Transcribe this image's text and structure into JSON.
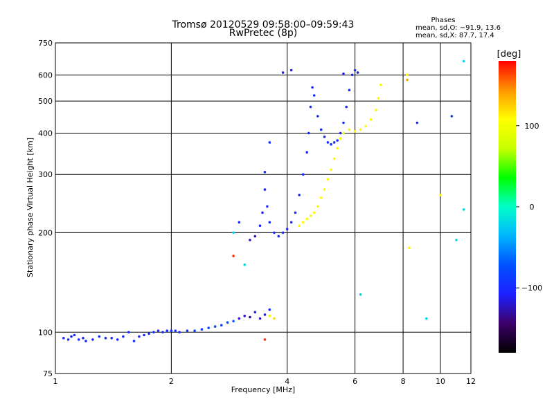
{
  "title_line1": "Tromsø 20120529 09:58:00–09:59:43",
  "title_line2": "RwPretec (8p)",
  "phases_header": "Phases",
  "phases_o": "mean, sd,O: −91.9, 13.6",
  "phases_x": "mean, sd,X:  87.7, 17.4",
  "colorbar_label": "[deg]",
  "colors": {
    "background": "#ffffff",
    "grid": "#000000",
    "text": "#000000"
  },
  "chart_data": {
    "type": "scatter",
    "xlabel": "Frequency [MHz]",
    "ylabel": "Stationary phase Virtual Height [km]",
    "x_scale": "log",
    "y_scale": "log",
    "xlim": [
      1,
      12
    ],
    "ylim": [
      75,
      750
    ],
    "x_ticks": [
      1,
      2,
      4,
      6,
      8,
      10,
      12
    ],
    "y_ticks": [
      75,
      100,
      200,
      300,
      400,
      500,
      600,
      750
    ],
    "grid": true,
    "colorbar": {
      "label": "[deg]",
      "range": [
        -180,
        180
      ],
      "ticks": [
        100,
        0,
        -100
      ],
      "colors": [
        "#000000",
        "#3c0068",
        "#1e20ff",
        "#0050ff",
        "#00b4ff",
        "#00ffc8",
        "#00ff00",
        "#c8ff00",
        "#ffff00",
        "#ff9600",
        "#ff0000"
      ]
    },
    "series": [
      {
        "points": [
          [
            1.05,
            96,
            -100
          ],
          [
            1.08,
            95,
            -100
          ],
          [
            1.1,
            97,
            -110
          ],
          [
            1.12,
            98,
            -100
          ],
          [
            1.15,
            95,
            -100
          ],
          [
            1.18,
            96,
            -105
          ],
          [
            1.2,
            94,
            -100
          ],
          [
            1.25,
            95,
            -100
          ],
          [
            1.3,
            97,
            -100
          ],
          [
            1.35,
            96,
            -100
          ],
          [
            1.4,
            96,
            -100
          ],
          [
            1.45,
            95,
            -100
          ],
          [
            1.5,
            97,
            -100
          ],
          [
            1.55,
            100,
            -100
          ],
          [
            1.6,
            94,
            -100
          ],
          [
            1.65,
            97,
            -100
          ],
          [
            1.7,
            98,
            -100
          ],
          [
            1.75,
            99,
            -100
          ],
          [
            1.8,
            100,
            -100
          ],
          [
            1.85,
            101,
            -100
          ],
          [
            1.9,
            100,
            -100
          ],
          [
            1.95,
            101,
            -100
          ],
          [
            2.0,
            101,
            -100
          ],
          [
            2.05,
            101,
            -100
          ],
          [
            2.1,
            100,
            -100
          ],
          [
            2.2,
            101,
            -100
          ],
          [
            2.3,
            101,
            -90
          ],
          [
            2.4,
            102,
            -90
          ],
          [
            2.5,
            103,
            -80
          ],
          [
            2.6,
            104,
            -80
          ],
          [
            2.7,
            105,
            -80
          ],
          [
            2.8,
            107,
            -70
          ],
          [
            2.9,
            108,
            -70
          ],
          [
            3.0,
            110,
            -120
          ],
          [
            3.1,
            112,
            -120
          ],
          [
            3.2,
            111,
            -130
          ],
          [
            3.3,
            115,
            -110
          ],
          [
            3.4,
            110,
            -120
          ],
          [
            3.5,
            113,
            -110
          ],
          [
            3.6,
            117,
            -100
          ],
          [
            3.7,
            110,
            120
          ],
          [
            3.6,
            112,
            100
          ],
          [
            3.2,
            190,
            -120
          ],
          [
            3.3,
            195,
            -120
          ],
          [
            3.4,
            210,
            -110
          ],
          [
            3.45,
            230,
            -110
          ],
          [
            3.5,
            270,
            -110
          ],
          [
            3.55,
            240,
            -100
          ],
          [
            3.6,
            215,
            -100
          ],
          [
            3.7,
            200,
            -100
          ],
          [
            3.8,
            195,
            -100
          ],
          [
            3.9,
            200,
            -100
          ],
          [
            4.0,
            205,
            -100
          ],
          [
            4.1,
            215,
            -100
          ],
          [
            4.2,
            230,
            -100
          ],
          [
            4.3,
            260,
            -100
          ],
          [
            4.4,
            300,
            -100
          ],
          [
            4.5,
            350,
            -100
          ],
          [
            4.55,
            400,
            -100
          ],
          [
            4.6,
            480,
            -100
          ],
          [
            4.65,
            550,
            -100
          ],
          [
            4.7,
            520,
            -100
          ],
          [
            4.8,
            450,
            -100
          ],
          [
            4.9,
            410,
            -100
          ],
          [
            5.0,
            390,
            -100
          ],
          [
            5.1,
            375,
            -100
          ],
          [
            5.2,
            370,
            -100
          ],
          [
            5.3,
            375,
            -100
          ],
          [
            5.4,
            380,
            -100
          ],
          [
            5.5,
            400,
            -100
          ],
          [
            5.6,
            430,
            -100
          ],
          [
            5.7,
            480,
            -100
          ],
          [
            5.8,
            540,
            -100
          ],
          [
            5.9,
            600,
            -100
          ],
          [
            6.0,
            620,
            -100
          ],
          [
            4.3,
            210,
            110
          ],
          [
            4.4,
            215,
            110
          ],
          [
            4.5,
            220,
            110
          ],
          [
            4.6,
            225,
            110
          ],
          [
            4.7,
            230,
            110
          ],
          [
            4.8,
            240,
            110
          ],
          [
            4.9,
            255,
            110
          ],
          [
            5.0,
            270,
            110
          ],
          [
            5.1,
            290,
            110
          ],
          [
            5.2,
            310,
            110
          ],
          [
            5.3,
            335,
            110
          ],
          [
            5.4,
            360,
            110
          ],
          [
            5.5,
            385,
            100
          ],
          [
            5.6,
            400,
            100
          ],
          [
            5.8,
            410,
            110
          ],
          [
            6.0,
            405,
            110
          ],
          [
            6.2,
            410,
            110
          ],
          [
            6.4,
            420,
            110
          ],
          [
            6.6,
            440,
            110
          ],
          [
            6.8,
            470,
            110
          ],
          [
            6.9,
            510,
            110
          ],
          [
            7.0,
            560,
            110
          ],
          [
            3.9,
            610,
            -110
          ],
          [
            4.1,
            620,
            -110
          ],
          [
            5.6,
            605,
            -110
          ],
          [
            6.1,
            610,
            -110
          ],
          [
            8.2,
            600,
            110
          ],
          [
            8.2,
            580,
            140
          ],
          [
            11.5,
            660,
            -20
          ],
          [
            3.5,
            305,
            -100
          ],
          [
            3.6,
            375,
            -100
          ],
          [
            2.9,
            170,
            170
          ],
          [
            2.9,
            200,
            -20
          ],
          [
            3.0,
            215,
            -100
          ],
          [
            3.1,
            160,
            -20
          ],
          [
            3.5,
            95,
            170
          ],
          [
            6.2,
            130,
            -20
          ],
          [
            8.3,
            180,
            110
          ],
          [
            10.0,
            260,
            110
          ],
          [
            10.7,
            450,
            -100
          ],
          [
            11.0,
            190,
            -20
          ],
          [
            11.5,
            235,
            -20
          ],
          [
            9.2,
            110,
            -20
          ],
          [
            8.7,
            430,
            -100
          ]
        ]
      }
    ]
  }
}
